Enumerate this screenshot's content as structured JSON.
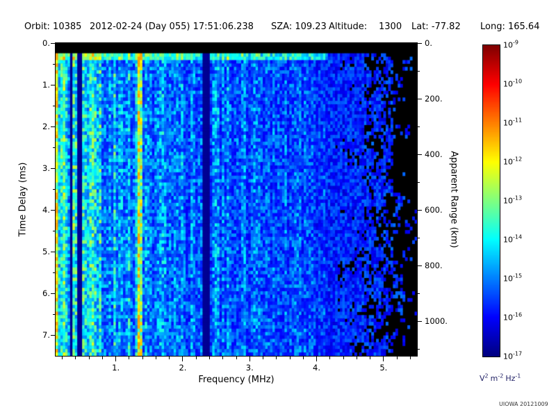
{
  "header": {
    "parts": [
      "Orbit: 10385",
      "2012-02-24 (Day 055) 17:51:06.238",
      "SZA: 109.23",
      "Altitude:",
      "1300",
      "Lat: -77.82",
      "Long: 165.64"
    ]
  },
  "credit": "UIOWA 20121009",
  "chart_data": {
    "type": "heatmap",
    "description": "Radar sounder ionogram: received spectral density vs frequency (MHz) and time delay (ms); mostly blue noise field, brighter cyan banding below ~2.3 MHz, bright vertical line near 1.35 MHz, black interference notch near 2.36 MHz, black dropout speckle above ~4.2 MHz, solid black band at top",
    "title": "",
    "xlabel": "Frequency (MHz)",
    "ylabel_left": "Time Delay (ms)",
    "ylabel_right": "Apparent Range (km)",
    "x_range_mhz": [
      0.1,
      5.5
    ],
    "y_range_ms": [
      0,
      7.5
    ],
    "km_per_ms": 150,
    "x_tick_values": [
      1,
      2,
      3,
      4,
      5
    ],
    "x_tick_labels": [
      "1.",
      "2.",
      "3.",
      "4.",
      "5."
    ],
    "x_minor_step": 0.2,
    "y_left_tick_values": [
      0,
      1,
      2,
      3,
      4,
      5,
      6,
      7
    ],
    "y_left_tick_labels": [
      "0.",
      "1.",
      "2.",
      "3.",
      "4.",
      "5.",
      "6.",
      "7."
    ],
    "y_left_minor_step": 0.5,
    "y_right_tick_values_km": [
      0,
      200,
      400,
      600,
      800,
      1000
    ],
    "y_right_tick_labels": [
      "0.",
      "200.",
      "400.",
      "600.",
      "800.",
      "1000."
    ],
    "y_right_minor_step_km": 100,
    "colorbar": {
      "scale": "log",
      "colormap": "jet",
      "top_value": "1e-9",
      "bottom_value": "1e-17",
      "exponents": [
        "-9",
        "-10",
        "-11",
        "-12",
        "-13",
        "-14",
        "-15",
        "-16",
        "-17"
      ],
      "unit_parts": [
        {
          "base": "V",
          "exp": "2"
        },
        {
          "base": "m",
          "exp": "-2"
        },
        {
          "base": "Hz",
          "exp": "-1"
        }
      ]
    },
    "features": {
      "top_black_band_ms": 0.22,
      "surface_bright_band_ms": 0.35,
      "bright_lines_mhz": [
        {
          "f": 0.12,
          "w": 0.045,
          "boost": 0.3
        },
        {
          "f": 0.22,
          "w": 0.05,
          "boost": 0.16
        },
        {
          "f": 0.62,
          "w": 0.06,
          "boost": 0.1
        },
        {
          "f": 1.35,
          "w": 0.06,
          "boost": 0.34
        }
      ],
      "dark_lines_mhz": [
        {
          "f": 0.33,
          "w": 0.03
        },
        {
          "f": 0.46,
          "w": 0.02
        },
        {
          "f": 2.36,
          "w": 0.055
        }
      ],
      "blackout_start_mhz": 4.15,
      "noise_floor_exp": -16,
      "peak_exp": -14
    }
  }
}
